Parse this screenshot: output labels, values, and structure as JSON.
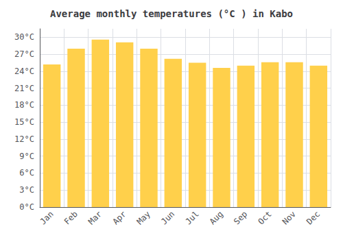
{
  "chart_data": {
    "type": "bar",
    "title": "Average monthly temperatures (°C ) in Kabo",
    "categories": [
      "Jan",
      "Feb",
      "Mar",
      "Apr",
      "May",
      "Jun",
      "Jul",
      "Aug",
      "Sep",
      "Oct",
      "Nov",
      "Dec"
    ],
    "values": [
      25.2,
      28.0,
      29.6,
      29.1,
      28.0,
      26.2,
      25.5,
      24.6,
      25.0,
      25.6,
      25.6,
      25.0
    ],
    "color": "#FFD04B",
    "ylim": [
      0,
      31.5
    ],
    "yticks": [
      {
        "value": 0,
        "label": "0°C"
      },
      {
        "value": 3,
        "label": "3°C"
      },
      {
        "value": 6,
        "label": "6°C"
      },
      {
        "value": 9,
        "label": "9°C"
      },
      {
        "value": 12,
        "label": "12°C"
      },
      {
        "value": 15,
        "label": "15°C"
      },
      {
        "value": 18,
        "label": "18°C"
      },
      {
        "value": 21,
        "label": "21°C"
      },
      {
        "value": 24,
        "label": "24°C"
      },
      {
        "value": 27,
        "label": "27°C"
      },
      {
        "value": 30,
        "label": "30°C"
      }
    ],
    "grid": true
  }
}
